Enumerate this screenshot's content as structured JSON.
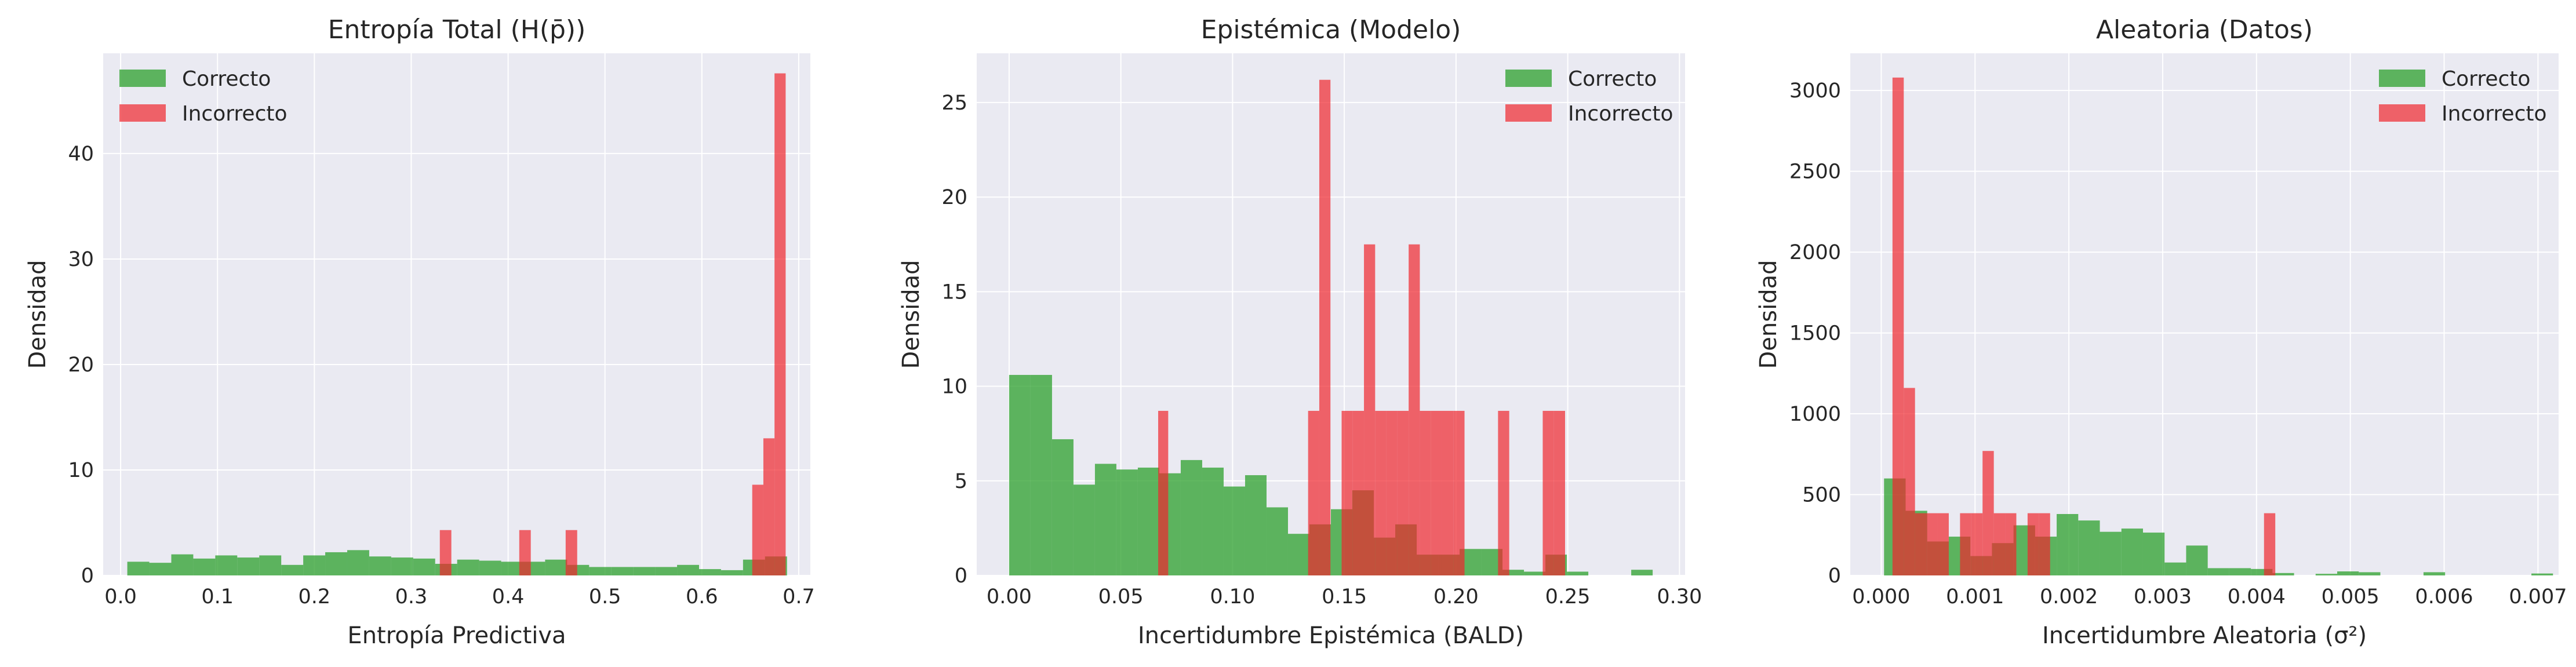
{
  "chart_data": [
    {
      "type": "bar",
      "title": "Entropía Total (H(p̄))",
      "xlabel": "Entropía Predictiva",
      "ylabel": "Densidad",
      "xlim": [
        -0.018,
        0.712
      ],
      "ylim": [
        0,
        49.5
      ],
      "xticks": [
        0.0,
        0.1,
        0.2,
        0.3,
        0.4,
        0.5,
        0.6,
        0.7
      ],
      "xtick_labels": [
        "0.0",
        "0.1",
        "0.2",
        "0.3",
        "0.4",
        "0.5",
        "0.6",
        "0.7"
      ],
      "yticks": [
        0,
        10,
        20,
        30,
        40
      ],
      "ytick_labels": [
        "0",
        "10",
        "20",
        "30",
        "40"
      ],
      "legend_position": "top-left",
      "grid": true,
      "series": [
        {
          "name": "Correcto",
          "color": "#2ca02c",
          "bins": [
            0.0069,
            0.0296,
            0.0523,
            0.075,
            0.0977,
            0.1204,
            0.1431,
            0.1658,
            0.1885,
            0.2112,
            0.2339,
            0.2566,
            0.2793,
            0.302,
            0.3247,
            0.3474,
            0.3701,
            0.3928,
            0.4155,
            0.4382,
            0.4609,
            0.4836,
            0.5063,
            0.529,
            0.5517,
            0.5744,
            0.5971,
            0.6198,
            0.6425,
            0.6652,
            0.6879
          ],
          "values": [
            1.3,
            1.2,
            2.0,
            1.6,
            1.9,
            1.7,
            1.9,
            1.0,
            1.9,
            2.2,
            2.4,
            1.8,
            1.7,
            1.6,
            1.1,
            1.5,
            1.4,
            1.3,
            1.3,
            1.5,
            1.0,
            0.8,
            0.8,
            0.8,
            0.8,
            1.0,
            0.6,
            0.5,
            1.5,
            1.8
          ]
        },
        {
          "name": "Incorrecto",
          "color": "#f0272d",
          "bins": [
            0.3295,
            0.3414,
            0.4115,
            0.4234,
            0.4594,
            0.4713,
            0.652,
            0.6635,
            0.675,
            0.6865,
            0.698
          ],
          "values": [
            4.3,
            0,
            4.3,
            0,
            4.3,
            0,
            8.6,
            13.0,
            47.6,
            0
          ],
          "bars": [
            {
              "x0": 0.3295,
              "x1": 0.3414,
              "v": 4.3
            },
            {
              "x0": 0.4115,
              "x1": 0.4234,
              "v": 4.3
            },
            {
              "x0": 0.4594,
              "x1": 0.4713,
              "v": 4.3
            },
            {
              "x0": 0.652,
              "x1": 0.6635,
              "v": 8.6
            },
            {
              "x0": 0.6635,
              "x1": 0.675,
              "v": 13.0
            },
            {
              "x0": 0.675,
              "x1": 0.6865,
              "v": 47.6
            }
          ]
        }
      ]
    },
    {
      "type": "bar",
      "title": "Epistémica (Modelo)",
      "xlabel": "Incertidumbre Epistémica (BALD)",
      "ylabel": "Densidad",
      "xlim": [
        -0.0145,
        0.3025
      ],
      "ylim": [
        0,
        27.6
      ],
      "xticks": [
        0.0,
        0.05,
        0.1,
        0.15,
        0.2,
        0.25,
        0.3
      ],
      "xtick_labels": [
        "0.00",
        "0.05",
        "0.10",
        "0.15",
        "0.20",
        "0.25",
        "0.30"
      ],
      "yticks": [
        0,
        5,
        10,
        15,
        20,
        25
      ],
      "ytick_labels": [
        "0",
        "5",
        "10",
        "15",
        "20",
        "25"
      ],
      "legend_position": "top-right",
      "grid": true,
      "series": [
        {
          "name": "Correcto",
          "color": "#2ca02c",
          "bars": [
            {
              "x0": 0.0,
              "x1": 0.0096,
              "v": 10.6
            },
            {
              "x0": 0.0096,
              "x1": 0.0192,
              "v": 10.6
            },
            {
              "x0": 0.0192,
              "x1": 0.0288,
              "v": 7.2
            },
            {
              "x0": 0.0288,
              "x1": 0.0384,
              "v": 4.8
            },
            {
              "x0": 0.0384,
              "x1": 0.048,
              "v": 5.9
            },
            {
              "x0": 0.048,
              "x1": 0.0576,
              "v": 5.6
            },
            {
              "x0": 0.0576,
              "x1": 0.0672,
              "v": 5.7
            },
            {
              "x0": 0.0672,
              "x1": 0.0768,
              "v": 5.4
            },
            {
              "x0": 0.0768,
              "x1": 0.0864,
              "v": 6.1
            },
            {
              "x0": 0.0864,
              "x1": 0.096,
              "v": 5.7
            },
            {
              "x0": 0.096,
              "x1": 0.1056,
              "v": 4.7
            },
            {
              "x0": 0.1056,
              "x1": 0.1152,
              "v": 5.3
            },
            {
              "x0": 0.1152,
              "x1": 0.1248,
              "v": 3.6
            },
            {
              "x0": 0.1248,
              "x1": 0.1344,
              "v": 2.2
            },
            {
              "x0": 0.1344,
              "x1": 0.144,
              "v": 2.7
            },
            {
              "x0": 0.144,
              "x1": 0.1536,
              "v": 3.5
            },
            {
              "x0": 0.1536,
              "x1": 0.1632,
              "v": 4.5
            },
            {
              "x0": 0.1632,
              "x1": 0.1728,
              "v": 2.0
            },
            {
              "x0": 0.1728,
              "x1": 0.1824,
              "v": 2.7
            },
            {
              "x0": 0.1824,
              "x1": 0.192,
              "v": 1.1
            },
            {
              "x0": 0.192,
              "x1": 0.2016,
              "v": 1.1
            },
            {
              "x0": 0.2016,
              "x1": 0.2112,
              "v": 1.4
            },
            {
              "x0": 0.2112,
              "x1": 0.2208,
              "v": 1.4
            },
            {
              "x0": 0.2208,
              "x1": 0.2304,
              "v": 0.3
            },
            {
              "x0": 0.2304,
              "x1": 0.24,
              "v": 0.2
            },
            {
              "x0": 0.24,
              "x1": 0.2496,
              "v": 1.1
            },
            {
              "x0": 0.2496,
              "x1": 0.2592,
              "v": 0.2
            },
            {
              "x0": 0.2784,
              "x1": 0.288,
              "v": 0.3
            }
          ]
        },
        {
          "name": "Incorrecto",
          "color": "#f0272d",
          "bars": [
            {
              "x0": 0.0667,
              "x1": 0.0712,
              "v": 8.7
            },
            {
              "x0": 0.1338,
              "x1": 0.1388,
              "v": 8.7
            },
            {
              "x0": 0.1388,
              "x1": 0.1438,
              "v": 26.2
            },
            {
              "x0": 0.1438,
              "x1": 0.1488,
              "v": 0.0
            },
            {
              "x0": 0.1488,
              "x1": 0.1538,
              "v": 8.7
            },
            {
              "x0": 0.1538,
              "x1": 0.1588,
              "v": 8.7
            },
            {
              "x0": 0.1588,
              "x1": 0.1638,
              "v": 17.5
            },
            {
              "x0": 0.1638,
              "x1": 0.1688,
              "v": 8.7
            },
            {
              "x0": 0.1688,
              "x1": 0.1738,
              "v": 8.7
            },
            {
              "x0": 0.1738,
              "x1": 0.1788,
              "v": 8.7
            },
            {
              "x0": 0.1788,
              "x1": 0.1838,
              "v": 17.5
            },
            {
              "x0": 0.1838,
              "x1": 0.1888,
              "v": 8.7
            },
            {
              "x0": 0.1888,
              "x1": 0.1938,
              "v": 8.7
            },
            {
              "x0": 0.1938,
              "x1": 0.1988,
              "v": 8.7
            },
            {
              "x0": 0.1988,
              "x1": 0.2038,
              "v": 8.7
            },
            {
              "x0": 0.2188,
              "x1": 0.2238,
              "v": 8.7
            },
            {
              "x0": 0.2388,
              "x1": 0.2438,
              "v": 8.7
            },
            {
              "x0": 0.2438,
              "x1": 0.2488,
              "v": 8.7
            }
          ]
        }
      ]
    },
    {
      "type": "bar",
      "title": "Aleatoria (Datos)",
      "xlabel": "Incertidumbre Aleatoria (σ²)",
      "ylabel": "Densidad",
      "xlim": [
        -0.00033,
        0.00722
      ],
      "ylim": [
        0,
        3230
      ],
      "xticks": [
        0.0,
        0.001,
        0.002,
        0.003,
        0.004,
        0.005,
        0.006,
        0.007
      ],
      "xtick_labels": [
        "0.000",
        "0.001",
        "0.002",
        "0.003",
        "0.004",
        "0.005",
        "0.006",
        "0.007"
      ],
      "yticks": [
        0,
        500,
        1000,
        1500,
        2000,
        2500,
        3000
      ],
      "ytick_labels": [
        "0",
        "500",
        "1000",
        "1500",
        "2000",
        "2500",
        "3000"
      ],
      "legend_position": "top-right",
      "grid": true,
      "series": [
        {
          "name": "Correcto",
          "color": "#2ca02c",
          "bars": [
            {
              "x0": 3e-05,
              "x1": 0.00026,
              "v": 600
            },
            {
              "x0": 0.00026,
              "x1": 0.00049,
              "v": 400
            },
            {
              "x0": 0.00049,
              "x1": 0.00072,
              "v": 210
            },
            {
              "x0": 0.00072,
              "x1": 0.00095,
              "v": 240
            },
            {
              "x0": 0.00095,
              "x1": 0.00118,
              "v": 120
            },
            {
              "x0": 0.00118,
              "x1": 0.00141,
              "v": 200
            },
            {
              "x0": 0.00141,
              "x1": 0.00164,
              "v": 310
            },
            {
              "x0": 0.00164,
              "x1": 0.00187,
              "v": 240
            },
            {
              "x0": 0.00187,
              "x1": 0.0021,
              "v": 380
            },
            {
              "x0": 0.0021,
              "x1": 0.00233,
              "v": 340
            },
            {
              "x0": 0.00233,
              "x1": 0.00256,
              "v": 270
            },
            {
              "x0": 0.00256,
              "x1": 0.00279,
              "v": 290
            },
            {
              "x0": 0.00279,
              "x1": 0.00302,
              "v": 265
            },
            {
              "x0": 0.00302,
              "x1": 0.00325,
              "v": 80
            },
            {
              "x0": 0.00325,
              "x1": 0.00348,
              "v": 185
            },
            {
              "x0": 0.00348,
              "x1": 0.00371,
              "v": 45
            },
            {
              "x0": 0.00371,
              "x1": 0.00394,
              "v": 45
            },
            {
              "x0": 0.00394,
              "x1": 0.00417,
              "v": 40
            },
            {
              "x0": 0.00417,
              "x1": 0.0044,
              "v": 15
            },
            {
              "x0": 0.00463,
              "x1": 0.00486,
              "v": 10
            },
            {
              "x0": 0.00486,
              "x1": 0.00509,
              "v": 25
            },
            {
              "x0": 0.00509,
              "x1": 0.00532,
              "v": 20
            },
            {
              "x0": 0.00578,
              "x1": 0.00601,
              "v": 20
            },
            {
              "x0": 0.00693,
              "x1": 0.00716,
              "v": 12
            }
          ]
        },
        {
          "name": "Incorrecto",
          "color": "#f0272d",
          "bars": [
            {
              "x0": 0.00012,
              "x1": 0.00024,
              "v": 3080
            },
            {
              "x0": 0.00024,
              "x1": 0.00036,
              "v": 1160
            },
            {
              "x0": 0.00036,
              "x1": 0.00048,
              "v": 385
            },
            {
              "x0": 0.00048,
              "x1": 0.0006,
              "v": 385
            },
            {
              "x0": 0.0006,
              "x1": 0.00072,
              "v": 385
            },
            {
              "x0": 0.00084,
              "x1": 0.00096,
              "v": 385
            },
            {
              "x0": 0.00096,
              "x1": 0.00108,
              "v": 385
            },
            {
              "x0": 0.00108,
              "x1": 0.0012,
              "v": 770
            },
            {
              "x0": 0.0012,
              "x1": 0.00132,
              "v": 385
            },
            {
              "x0": 0.00132,
              "x1": 0.00144,
              "v": 385
            },
            {
              "x0": 0.00156,
              "x1": 0.00168,
              "v": 385
            },
            {
              "x0": 0.00168,
              "x1": 0.0018,
              "v": 385
            },
            {
              "x0": 0.00408,
              "x1": 0.0042,
              "v": 385
            }
          ]
        }
      ]
    }
  ]
}
